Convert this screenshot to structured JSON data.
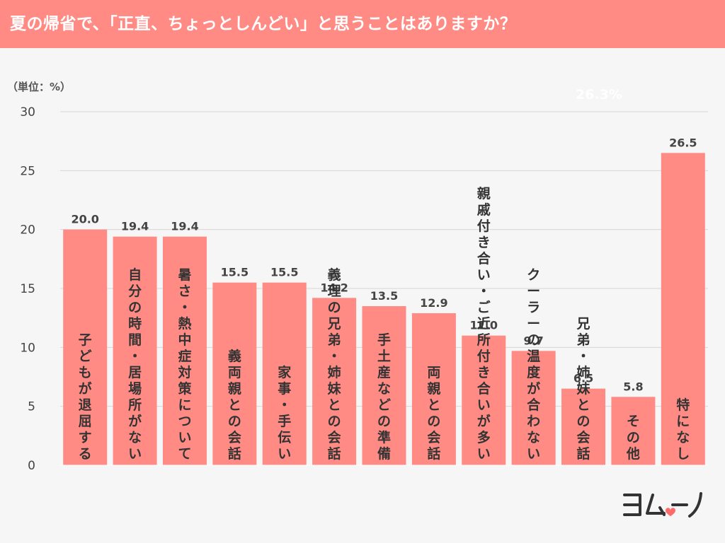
{
  "header": {
    "title": "夏の帰省で、「正直、ちょっとしんどい」と思うことはありますか？"
  },
  "unit_label": "（単位：%）",
  "ghost_text": "26.3%",
  "logo": {
    "name": "ヨムーノ"
  },
  "colors": {
    "bar": "#ff8b84",
    "header": "#ff8b84",
    "grid": "#d6d6d6",
    "text": "#444444",
    "background": "#f6f6f6"
  },
  "chart_data": {
    "type": "bar",
    "title": "夏の帰省で、「正直、ちょっとしんどい」と思うことはありますか？",
    "xlabel": "",
    "ylabel": "",
    "ylim": [
      0,
      30
    ],
    "yticks": [
      0,
      5,
      10,
      15,
      20,
      25,
      30
    ],
    "grid": true,
    "categories": [
      "子どもが退屈する",
      "自分の時間・居場所がない",
      "暑さ・熱中症対策について",
      "義両親との会話",
      "家事・手伝い",
      "義理の兄弟・姉妹との会話",
      "手土産などの準備",
      "両親との会話",
      "親戚付き合い・ご近所付き合いが多い",
      "クーラーの温度が合わない",
      "兄弟・姉妹との会話",
      "その他",
      "特になし"
    ],
    "values": [
      20.0,
      19.4,
      19.4,
      15.5,
      15.5,
      14.2,
      13.5,
      12.9,
      11.0,
      9.7,
      6.5,
      5.8,
      26.5
    ],
    "value_labels": [
      "20.0",
      "19.4",
      "19.4",
      "15.5",
      "15.5",
      "14.2",
      "13.5",
      "12.9",
      "11.0",
      "9.7",
      "6.5",
      "5.8",
      "26.5"
    ]
  }
}
